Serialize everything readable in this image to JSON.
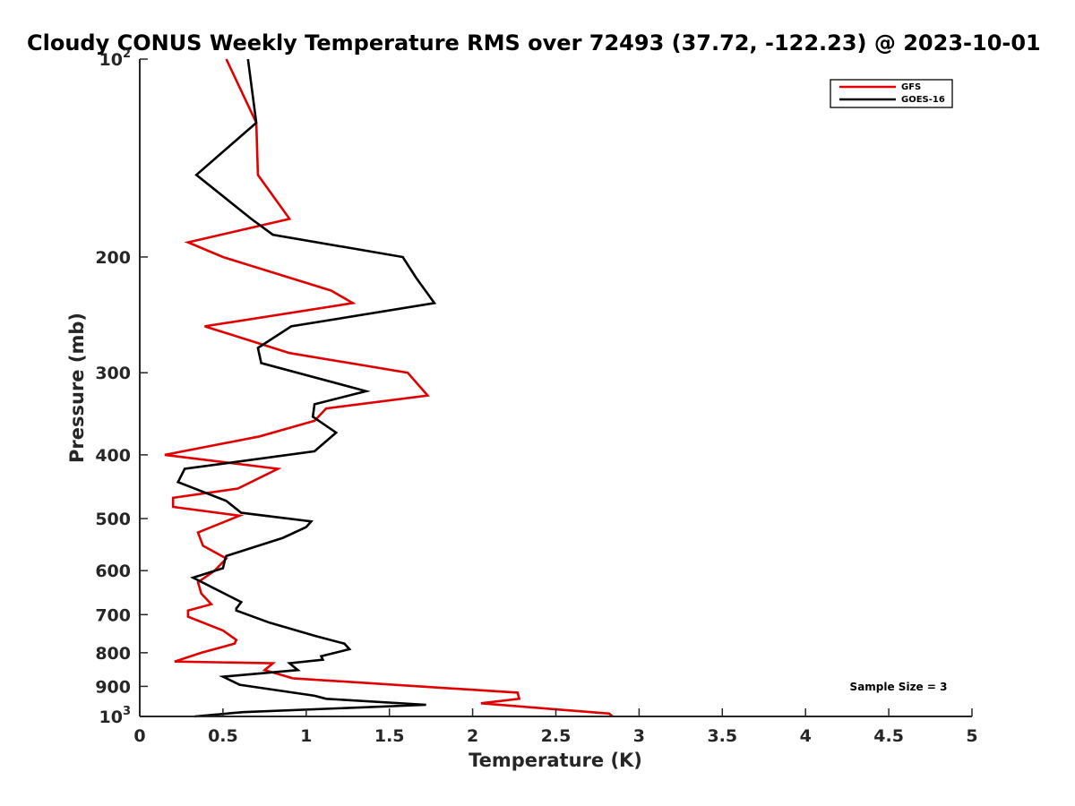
{
  "chart_data": {
    "type": "line",
    "title": "Cloudy CONUS Weekly Temperature RMS over 72493 (37.72, -122.23) @ 2023-10-01",
    "xlabel": "Temperature (K)",
    "ylabel": "Pressure (mb)",
    "xlim": [
      0,
      5
    ],
    "ylim": [
      1000,
      100
    ],
    "yscale": "log",
    "x_ticks": [
      "0",
      "0.5",
      "1",
      "1.5",
      "2",
      "2.5",
      "3",
      "3.5",
      "4",
      "4.5",
      "5"
    ],
    "y_ticks": [
      {
        "value": 100,
        "base": "10",
        "exp": "2"
      },
      {
        "value": 200,
        "label": "200"
      },
      {
        "value": 300,
        "label": "300"
      },
      {
        "value": 400,
        "label": "400"
      },
      {
        "value": 500,
        "label": "500"
      },
      {
        "value": 600,
        "label": "600"
      },
      {
        "value": 700,
        "label": "700"
      },
      {
        "value": 800,
        "label": "800"
      },
      {
        "value": 900,
        "label": "900"
      },
      {
        "value": 1000,
        "base": "10",
        "exp": "3"
      }
    ],
    "grid": false,
    "legend_position": "top-right",
    "annotation": "Sample Size = 3",
    "series": [
      {
        "name": "GFS",
        "color": "#e00000",
        "points": [
          [
            0.52,
            100
          ],
          [
            0.7,
            125
          ],
          [
            0.71,
            150
          ],
          [
            0.9,
            175
          ],
          [
            0.29,
            190
          ],
          [
            0.5,
            200
          ],
          [
            1.15,
            225
          ],
          [
            1.28,
            235
          ],
          [
            0.39,
            255
          ],
          [
            0.9,
            280
          ],
          [
            1.61,
            300
          ],
          [
            1.73,
            325
          ],
          [
            1.12,
            340
          ],
          [
            1.05,
            355
          ],
          [
            0.72,
            375
          ],
          [
            0.15,
            400
          ],
          [
            0.83,
            420
          ],
          [
            0.59,
            450
          ],
          [
            0.2,
            465
          ],
          [
            0.2,
            480
          ],
          [
            0.6,
            495
          ],
          [
            0.35,
            525
          ],
          [
            0.38,
            550
          ],
          [
            0.52,
            575
          ],
          [
            0.45,
            600
          ],
          [
            0.35,
            625
          ],
          [
            0.37,
            650
          ],
          [
            0.43,
            675
          ],
          [
            0.29,
            690
          ],
          [
            0.29,
            705
          ],
          [
            0.5,
            740
          ],
          [
            0.58,
            765
          ],
          [
            0.57,
            775
          ],
          [
            0.37,
            800
          ],
          [
            0.21,
            825
          ],
          [
            0.8,
            830
          ],
          [
            0.75,
            850
          ],
          [
            0.92,
            875
          ],
          [
            2.27,
            920
          ],
          [
            2.28,
            940
          ],
          [
            2.05,
            955
          ],
          [
            2.82,
            990
          ],
          [
            2.84,
            1000
          ]
        ]
      },
      {
        "name": "GOES-16",
        "color": "#000000",
        "points": [
          [
            0.65,
            100
          ],
          [
            0.7,
            125
          ],
          [
            0.34,
            150
          ],
          [
            0.67,
            175
          ],
          [
            0.8,
            185
          ],
          [
            1.58,
            200
          ],
          [
            1.66,
            215
          ],
          [
            1.77,
            235
          ],
          [
            0.91,
            255
          ],
          [
            0.71,
            275
          ],
          [
            0.73,
            290
          ],
          [
            1.36,
            320
          ],
          [
            1.05,
            335
          ],
          [
            1.04,
            350
          ],
          [
            1.18,
            370
          ],
          [
            1.05,
            395
          ],
          [
            0.27,
            420
          ],
          [
            0.23,
            440
          ],
          [
            0.52,
            470
          ],
          [
            0.61,
            490
          ],
          [
            1.03,
            505
          ],
          [
            1.0,
            515
          ],
          [
            0.86,
            535
          ],
          [
            0.52,
            570
          ],
          [
            0.51,
            580
          ],
          [
            0.5,
            595
          ],
          [
            0.32,
            615
          ],
          [
            0.61,
            670
          ],
          [
            0.58,
            685
          ],
          [
            0.58,
            690
          ],
          [
            0.78,
            720
          ],
          [
            1.06,
            755
          ],
          [
            1.23,
            775
          ],
          [
            1.26,
            790
          ],
          [
            1.09,
            810
          ],
          [
            1.1,
            820
          ],
          [
            0.9,
            830
          ],
          [
            0.95,
            850
          ],
          [
            0.5,
            870
          ],
          [
            0.6,
            895
          ],
          [
            1.05,
            930
          ],
          [
            1.12,
            940
          ],
          [
            1.72,
            960
          ],
          [
            0.62,
            985
          ],
          [
            0.33,
            1000
          ]
        ]
      }
    ]
  }
}
